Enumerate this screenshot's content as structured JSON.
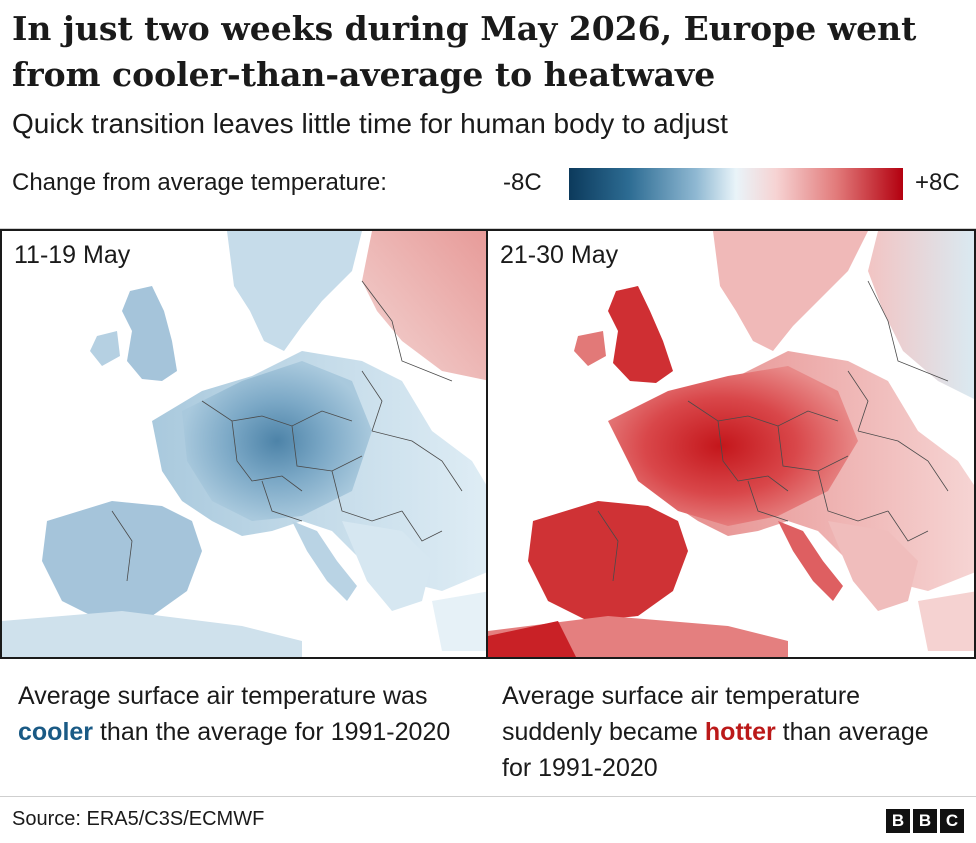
{
  "header": {
    "title": "In just two weeks during May 2026, Europe went from cooler-than-average to heatwave",
    "subtitle": "Quick transition leaves little time for human body to adjust"
  },
  "legend": {
    "label": "Change from average temperature:",
    "min_label": "-8C",
    "max_label": "+8C",
    "colors": [
      "#0c3a5c",
      "#2d6c93",
      "#8fb8d2",
      "#e9f4f9",
      "#f6d3d3",
      "#e27b7b",
      "#b3000f"
    ]
  },
  "panels": [
    {
      "label": "11-19 May",
      "caption_before": "Average surface air temperature was ",
      "caption_emphasis": "cooler",
      "caption_after": " than the average for 1991-2020",
      "emphasis_color": "#1a5a85"
    },
    {
      "label": "21-30 May",
      "caption_before": "Average surface air temperature suddenly became ",
      "caption_emphasis": "hotter",
      "caption_after": " than average for 1991-2020",
      "emphasis_color": "#bb1919"
    }
  ],
  "footer": {
    "source": "Source: ERA5/C3S/ECMWF",
    "logo_letters": [
      "B",
      "B",
      "C"
    ]
  }
}
